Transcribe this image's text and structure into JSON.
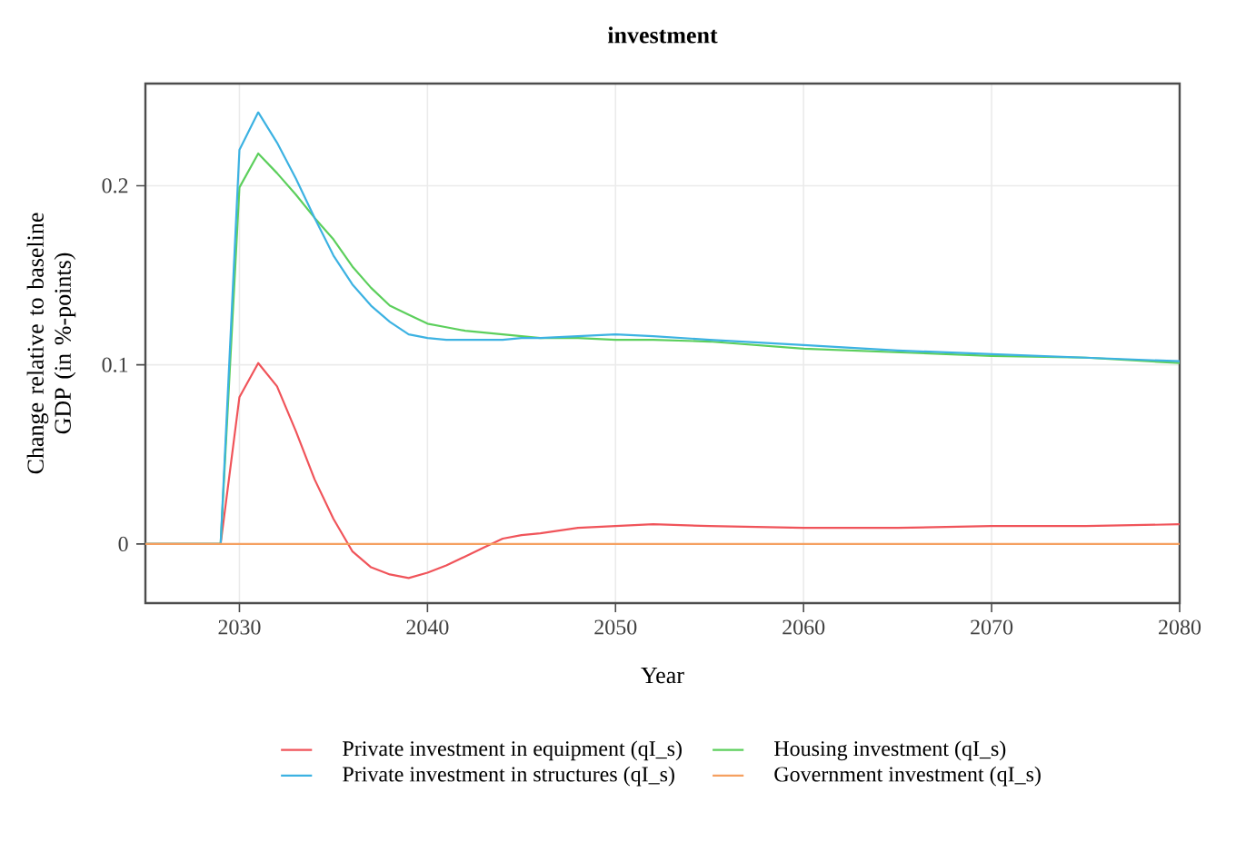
{
  "chart_data": {
    "type": "line",
    "title": "investment",
    "xlabel": "Year",
    "ylabel": "Change relative to baseline GDP (in %-points)",
    "x": [
      2025,
      2029,
      2030,
      2031,
      2032,
      2033,
      2034,
      2035,
      2036,
      2037,
      2038,
      2039,
      2040,
      2041,
      2042,
      2043,
      2044,
      2045,
      2046,
      2048,
      2050,
      2052,
      2055,
      2060,
      2065,
      2070,
      2075,
      2080
    ],
    "series": [
      {
        "name": "Private investment in equipment (qI_s)",
        "color": "#f0545a",
        "values": [
          0,
          0,
          0.082,
          0.101,
          0.088,
          0.063,
          0.036,
          0.014,
          -0.004,
          -0.013,
          -0.017,
          -0.019,
          -0.016,
          -0.012,
          -0.007,
          -0.002,
          0.003,
          0.005,
          0.006,
          0.009,
          0.01,
          0.011,
          0.01,
          0.009,
          0.009,
          0.01,
          0.01,
          0.011
        ]
      },
      {
        "name": "Housing investment (qI_s)",
        "color": "#5ccf5c",
        "values": [
          0,
          0,
          0.199,
          0.218,
          0.207,
          0.195,
          0.182,
          0.17,
          0.155,
          0.143,
          0.133,
          0.128,
          0.123,
          0.121,
          0.119,
          0.118,
          0.117,
          0.116,
          0.115,
          0.115,
          0.114,
          0.114,
          0.113,
          0.109,
          0.107,
          0.105,
          0.104,
          0.101
        ]
      },
      {
        "name": "Private investment in structures (qI_s)",
        "color": "#3cb2e2",
        "values": [
          0,
          0,
          0.22,
          0.241,
          0.224,
          0.204,
          0.182,
          0.161,
          0.145,
          0.133,
          0.124,
          0.117,
          0.115,
          0.114,
          0.114,
          0.114,
          0.114,
          0.115,
          0.115,
          0.116,
          0.117,
          0.116,
          0.114,
          0.111,
          0.108,
          0.106,
          0.104,
          0.102
        ]
      },
      {
        "name": "Government investment (qI_s)",
        "color": "#f5a060",
        "values": [
          0,
          0,
          0,
          0,
          0,
          0,
          0,
          0,
          0,
          0,
          0,
          0,
          0,
          0,
          0,
          0,
          0,
          0,
          0,
          0,
          0,
          0,
          0,
          0,
          0,
          0,
          0,
          0
        ]
      }
    ],
    "xlim": [
      2025,
      2080
    ],
    "ylim": [
      -0.033,
      0.257
    ],
    "xticks": [
      2030,
      2040,
      2050,
      2060,
      2070,
      2080
    ],
    "yticks": [
      0,
      0.1,
      0.2
    ],
    "grid": true,
    "legend": "bottom",
    "marker": "none",
    "line_style": "solid"
  }
}
